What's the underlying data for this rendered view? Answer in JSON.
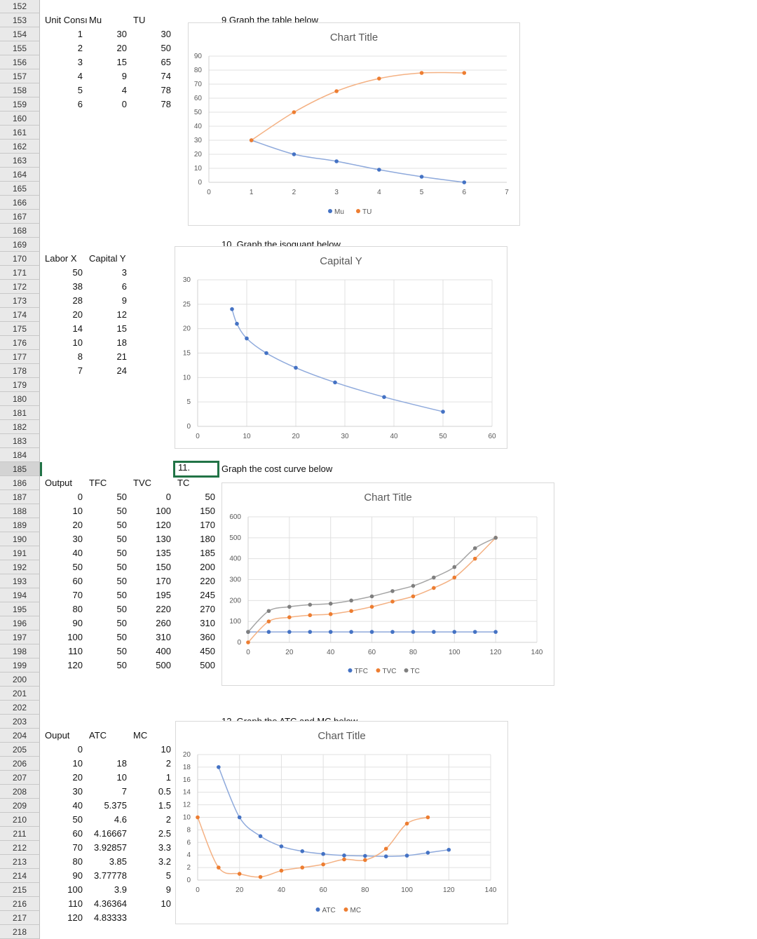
{
  "sheet": {
    "rows_first": 152,
    "rows_last": 218,
    "selected_row": 185,
    "cells": [
      {
        "r": 153,
        "c": "A",
        "t": "Unit Consı"
      },
      {
        "r": 153,
        "c": "B",
        "t": "Mu"
      },
      {
        "r": 153,
        "c": "C",
        "t": "TU"
      },
      {
        "r": 153,
        "c": "E",
        "t": "9  Graph the table below"
      },
      {
        "r": 154,
        "c": "A",
        "t": "1",
        "n": 1
      },
      {
        "r": 154,
        "c": "B",
        "t": "30",
        "n": 1
      },
      {
        "r": 154,
        "c": "C",
        "t": "30",
        "n": 1
      },
      {
        "r": 155,
        "c": "A",
        "t": "2",
        "n": 1
      },
      {
        "r": 155,
        "c": "B",
        "t": "20",
        "n": 1
      },
      {
        "r": 155,
        "c": "C",
        "t": "50",
        "n": 1
      },
      {
        "r": 156,
        "c": "A",
        "t": "3",
        "n": 1
      },
      {
        "r": 156,
        "c": "B",
        "t": "15",
        "n": 1
      },
      {
        "r": 156,
        "c": "C",
        "t": "65",
        "n": 1
      },
      {
        "r": 157,
        "c": "A",
        "t": "4",
        "n": 1
      },
      {
        "r": 157,
        "c": "B",
        "t": "9",
        "n": 1
      },
      {
        "r": 157,
        "c": "C",
        "t": "74",
        "n": 1
      },
      {
        "r": 158,
        "c": "A",
        "t": "5",
        "n": 1
      },
      {
        "r": 158,
        "c": "B",
        "t": "4",
        "n": 1
      },
      {
        "r": 158,
        "c": "C",
        "t": "78",
        "n": 1
      },
      {
        "r": 159,
        "c": "A",
        "t": "6",
        "n": 1
      },
      {
        "r": 159,
        "c": "B",
        "t": "0",
        "n": 1
      },
      {
        "r": 159,
        "c": "C",
        "t": "78",
        "n": 1
      },
      {
        "r": 169,
        "c": "E",
        "t": "10. Graph the isoquant below"
      },
      {
        "r": 170,
        "c": "A",
        "t": "Labor X"
      },
      {
        "r": 170,
        "c": "B",
        "t": "Capital Y"
      },
      {
        "r": 171,
        "c": "A",
        "t": "50",
        "n": 1
      },
      {
        "r": 171,
        "c": "B",
        "t": "3",
        "n": 1
      },
      {
        "r": 172,
        "c": "A",
        "t": "38",
        "n": 1
      },
      {
        "r": 172,
        "c": "B",
        "t": "6",
        "n": 1
      },
      {
        "r": 173,
        "c": "A",
        "t": "28",
        "n": 1
      },
      {
        "r": 173,
        "c": "B",
        "t": "9",
        "n": 1
      },
      {
        "r": 174,
        "c": "A",
        "t": "20",
        "n": 1
      },
      {
        "r": 174,
        "c": "B",
        "t": "12",
        "n": 1
      },
      {
        "r": 175,
        "c": "A",
        "t": "14",
        "n": 1
      },
      {
        "r": 175,
        "c": "B",
        "t": "15",
        "n": 1
      },
      {
        "r": 176,
        "c": "A",
        "t": "10",
        "n": 1
      },
      {
        "r": 176,
        "c": "B",
        "t": "18",
        "n": 1
      },
      {
        "r": 177,
        "c": "A",
        "t": "8",
        "n": 1
      },
      {
        "r": 177,
        "c": "B",
        "t": "21",
        "n": 1
      },
      {
        "r": 178,
        "c": "A",
        "t": "7",
        "n": 1
      },
      {
        "r": 178,
        "c": "B",
        "t": "24",
        "n": 1
      },
      {
        "r": 185,
        "c": "D",
        "t": "11.",
        "active": 1
      },
      {
        "r": 185,
        "c": "E",
        "t": "Graph the cost curve below"
      },
      {
        "r": 186,
        "c": "A",
        "t": "Output"
      },
      {
        "r": 186,
        "c": "B",
        "t": "TFC"
      },
      {
        "r": 186,
        "c": "C",
        "t": "TVC"
      },
      {
        "r": 186,
        "c": "D",
        "t": "TC"
      },
      {
        "r": 187,
        "c": "A",
        "t": "0",
        "n": 1
      },
      {
        "r": 187,
        "c": "B",
        "t": "50",
        "n": 1
      },
      {
        "r": 187,
        "c": "C",
        "t": "0",
        "n": 1
      },
      {
        "r": 187,
        "c": "D",
        "t": "50",
        "n": 1
      },
      {
        "r": 188,
        "c": "A",
        "t": "10",
        "n": 1
      },
      {
        "r": 188,
        "c": "B",
        "t": "50",
        "n": 1
      },
      {
        "r": 188,
        "c": "C",
        "t": "100",
        "n": 1
      },
      {
        "r": 188,
        "c": "D",
        "t": "150",
        "n": 1
      },
      {
        "r": 189,
        "c": "A",
        "t": "20",
        "n": 1
      },
      {
        "r": 189,
        "c": "B",
        "t": "50",
        "n": 1
      },
      {
        "r": 189,
        "c": "C",
        "t": "120",
        "n": 1
      },
      {
        "r": 189,
        "c": "D",
        "t": "170",
        "n": 1
      },
      {
        "r": 190,
        "c": "A",
        "t": "30",
        "n": 1
      },
      {
        "r": 190,
        "c": "B",
        "t": "50",
        "n": 1
      },
      {
        "r": 190,
        "c": "C",
        "t": "130",
        "n": 1
      },
      {
        "r": 190,
        "c": "D",
        "t": "180",
        "n": 1
      },
      {
        "r": 191,
        "c": "A",
        "t": "40",
        "n": 1
      },
      {
        "r": 191,
        "c": "B",
        "t": "50",
        "n": 1
      },
      {
        "r": 191,
        "c": "C",
        "t": "135",
        "n": 1
      },
      {
        "r": 191,
        "c": "D",
        "t": "185",
        "n": 1
      },
      {
        "r": 192,
        "c": "A",
        "t": "50",
        "n": 1
      },
      {
        "r": 192,
        "c": "B",
        "t": "50",
        "n": 1
      },
      {
        "r": 192,
        "c": "C",
        "t": "150",
        "n": 1
      },
      {
        "r": 192,
        "c": "D",
        "t": "200",
        "n": 1
      },
      {
        "r": 193,
        "c": "A",
        "t": "60",
        "n": 1
      },
      {
        "r": 193,
        "c": "B",
        "t": "50",
        "n": 1
      },
      {
        "r": 193,
        "c": "C",
        "t": "170",
        "n": 1
      },
      {
        "r": 193,
        "c": "D",
        "t": "220",
        "n": 1
      },
      {
        "r": 194,
        "c": "A",
        "t": "70",
        "n": 1
      },
      {
        "r": 194,
        "c": "B",
        "t": "50",
        "n": 1
      },
      {
        "r": 194,
        "c": "C",
        "t": "195",
        "n": 1
      },
      {
        "r": 194,
        "c": "D",
        "t": "245",
        "n": 1
      },
      {
        "r": 195,
        "c": "A",
        "t": "80",
        "n": 1
      },
      {
        "r": 195,
        "c": "B",
        "t": "50",
        "n": 1
      },
      {
        "r": 195,
        "c": "C",
        "t": "220",
        "n": 1
      },
      {
        "r": 195,
        "c": "D",
        "t": "270",
        "n": 1
      },
      {
        "r": 196,
        "c": "A",
        "t": "90",
        "n": 1
      },
      {
        "r": 196,
        "c": "B",
        "t": "50",
        "n": 1
      },
      {
        "r": 196,
        "c": "C",
        "t": "260",
        "n": 1
      },
      {
        "r": 196,
        "c": "D",
        "t": "310",
        "n": 1
      },
      {
        "r": 197,
        "c": "A",
        "t": "100",
        "n": 1
      },
      {
        "r": 197,
        "c": "B",
        "t": "50",
        "n": 1
      },
      {
        "r": 197,
        "c": "C",
        "t": "310",
        "n": 1
      },
      {
        "r": 197,
        "c": "D",
        "t": "360",
        "n": 1
      },
      {
        "r": 198,
        "c": "A",
        "t": "110",
        "n": 1
      },
      {
        "r": 198,
        "c": "B",
        "t": "50",
        "n": 1
      },
      {
        "r": 198,
        "c": "C",
        "t": "400",
        "n": 1
      },
      {
        "r": 198,
        "c": "D",
        "t": "450",
        "n": 1
      },
      {
        "r": 199,
        "c": "A",
        "t": "120",
        "n": 1
      },
      {
        "r": 199,
        "c": "B",
        "t": "50",
        "n": 1
      },
      {
        "r": 199,
        "c": "C",
        "t": "500",
        "n": 1
      },
      {
        "r": 199,
        "c": "D",
        "t": "500",
        "n": 1
      },
      {
        "r": 203,
        "c": "E",
        "t": "12. Graph the ATC and MC below"
      },
      {
        "r": 204,
        "c": "A",
        "t": "Ouput"
      },
      {
        "r": 204,
        "c": "B",
        "t": "ATC"
      },
      {
        "r": 204,
        "c": "C",
        "t": "MC"
      },
      {
        "r": 205,
        "c": "A",
        "t": "0",
        "n": 1
      },
      {
        "r": 205,
        "c": "C",
        "t": "10",
        "n": 1
      },
      {
        "r": 206,
        "c": "A",
        "t": "10",
        "n": 1
      },
      {
        "r": 206,
        "c": "B",
        "t": "18",
        "n": 1
      },
      {
        "r": 206,
        "c": "C",
        "t": "2",
        "n": 1
      },
      {
        "r": 207,
        "c": "A",
        "t": "20",
        "n": 1
      },
      {
        "r": 207,
        "c": "B",
        "t": "10",
        "n": 1
      },
      {
        "r": 207,
        "c": "C",
        "t": "1",
        "n": 1
      },
      {
        "r": 208,
        "c": "A",
        "t": "30",
        "n": 1
      },
      {
        "r": 208,
        "c": "B",
        "t": "7",
        "n": 1
      },
      {
        "r": 208,
        "c": "C",
        "t": "0.5",
        "n": 1
      },
      {
        "r": 209,
        "c": "A",
        "t": "40",
        "n": 1
      },
      {
        "r": 209,
        "c": "B",
        "t": "5.375",
        "n": 1
      },
      {
        "r": 209,
        "c": "C",
        "t": "1.5",
        "n": 1
      },
      {
        "r": 210,
        "c": "A",
        "t": "50",
        "n": 1
      },
      {
        "r": 210,
        "c": "B",
        "t": "4.6",
        "n": 1
      },
      {
        "r": 210,
        "c": "C",
        "t": "2",
        "n": 1
      },
      {
        "r": 211,
        "c": "A",
        "t": "60",
        "n": 1
      },
      {
        "r": 211,
        "c": "B",
        "t": "4.16667",
        "n": 1
      },
      {
        "r": 211,
        "c": "C",
        "t": "2.5",
        "n": 1
      },
      {
        "r": 212,
        "c": "A",
        "t": "70",
        "n": 1
      },
      {
        "r": 212,
        "c": "B",
        "t": "3.92857",
        "n": 1
      },
      {
        "r": 212,
        "c": "C",
        "t": "3.3",
        "n": 1
      },
      {
        "r": 213,
        "c": "A",
        "t": "80",
        "n": 1
      },
      {
        "r": 213,
        "c": "B",
        "t": "3.85",
        "n": 1
      },
      {
        "r": 213,
        "c": "C",
        "t": "3.2",
        "n": 1
      },
      {
        "r": 214,
        "c": "A",
        "t": "90",
        "n": 1
      },
      {
        "r": 214,
        "c": "B",
        "t": "3.77778",
        "n": 1
      },
      {
        "r": 214,
        "c": "C",
        "t": "5",
        "n": 1
      },
      {
        "r": 215,
        "c": "A",
        "t": "100",
        "n": 1
      },
      {
        "r": 215,
        "c": "B",
        "t": "3.9",
        "n": 1
      },
      {
        "r": 215,
        "c": "C",
        "t": "9",
        "n": 1
      },
      {
        "r": 216,
        "c": "A",
        "t": "110",
        "n": 1
      },
      {
        "r": 216,
        "c": "B",
        "t": "4.36364",
        "n": 1
      },
      {
        "r": 216,
        "c": "C",
        "t": "10",
        "n": 1
      },
      {
        "r": 217,
        "c": "A",
        "t": "120",
        "n": 1
      },
      {
        "r": 217,
        "c": "B",
        "t": "4.83333",
        "n": 1
      }
    ]
  },
  "colors": {
    "blue": "#4472c4",
    "orange": "#ed7d31",
    "gray": "#7f7f7f",
    "blue_line": "#8faadc",
    "orange_line": "#f4b183",
    "gray_line": "#a5a5a5",
    "selection": "#217346"
  },
  "chart_data": [
    {
      "type": "scatter",
      "title": "Chart Title",
      "xlim": [
        0,
        7
      ],
      "xstep": 1,
      "ylim": [
        0,
        90
      ],
      "ystep": 10,
      "grid_x": false,
      "legend": "bottom",
      "series": [
        {
          "name": "Mu",
          "color": "#4472c4",
          "x": [
            1,
            2,
            3,
            4,
            5,
            6
          ],
          "y": [
            30,
            20,
            15,
            9,
            4,
            0
          ]
        },
        {
          "name": "TU",
          "color": "#ed7d31",
          "x": [
            1,
            2,
            3,
            4,
            5,
            6
          ],
          "y": [
            30,
            50,
            65,
            74,
            78,
            78
          ]
        }
      ]
    },
    {
      "type": "scatter",
      "title": "Capital Y",
      "xlim": [
        0,
        60
      ],
      "xstep": 10,
      "ylim": [
        0,
        30
      ],
      "ystep": 5,
      "grid_x": true,
      "legend": "none",
      "series": [
        {
          "color": "#4472c4",
          "x": [
            50,
            38,
            28,
            20,
            14,
            10,
            8,
            7
          ],
          "y": [
            3,
            6,
            9,
            12,
            15,
            18,
            21,
            24
          ]
        }
      ]
    },
    {
      "type": "scatter",
      "title": "Chart Title",
      "xlim": [
        0,
        140
      ],
      "xstep": 20,
      "ylim": [
        0,
        600
      ],
      "ystep": 100,
      "grid_x": true,
      "legend": "bottom",
      "series": [
        {
          "name": "TFC",
          "color": "#4472c4",
          "x": [
            0,
            10,
            20,
            30,
            40,
            50,
            60,
            70,
            80,
            90,
            100,
            110,
            120
          ],
          "y": [
            50,
            50,
            50,
            50,
            50,
            50,
            50,
            50,
            50,
            50,
            50,
            50,
            50
          ]
        },
        {
          "name": "TVC",
          "color": "#ed7d31",
          "x": [
            0,
            10,
            20,
            30,
            40,
            50,
            60,
            70,
            80,
            90,
            100,
            110,
            120
          ],
          "y": [
            0,
            100,
            120,
            130,
            135,
            150,
            170,
            195,
            220,
            260,
            310,
            400,
            500
          ]
        },
        {
          "name": "TC",
          "color": "#7f7f7f",
          "x": [
            0,
            10,
            20,
            30,
            40,
            50,
            60,
            70,
            80,
            90,
            100,
            110,
            120
          ],
          "y": [
            50,
            150,
            170,
            180,
            185,
            200,
            220,
            245,
            270,
            310,
            360,
            450,
            500
          ]
        }
      ]
    },
    {
      "type": "scatter",
      "title": "Chart Title",
      "xlim": [
        0,
        140
      ],
      "xstep": 20,
      "ylim": [
        0,
        20
      ],
      "ystep": 2,
      "grid_x": true,
      "legend": "bottom",
      "series": [
        {
          "name": "ATC",
          "color": "#4472c4",
          "x": [
            10,
            20,
            30,
            40,
            50,
            60,
            70,
            80,
            90,
            100,
            110,
            120
          ],
          "y": [
            18,
            10,
            7,
            5.375,
            4.6,
            4.16667,
            3.92857,
            3.85,
            3.77778,
            3.9,
            4.36364,
            4.83333
          ]
        },
        {
          "name": "MC",
          "color": "#ed7d31",
          "x": [
            0,
            10,
            20,
            30,
            40,
            50,
            60,
            70,
            80,
            90,
            100,
            110
          ],
          "y": [
            10,
            2,
            1,
            0.5,
            1.5,
            2,
            2.5,
            3.3,
            3.2,
            5,
            9,
            10
          ]
        }
      ]
    }
  ]
}
